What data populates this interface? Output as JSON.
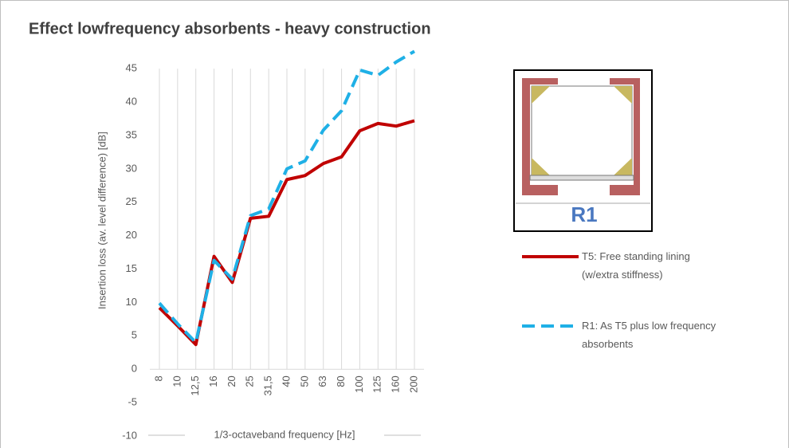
{
  "chart_data": {
    "type": "line",
    "title": "Effect lowfrequency absorbents  - heavy construction",
    "x_label": "1/3-octaveband frequency [Hz]",
    "y_label": "Insertion loss (av. level difference) [dB]",
    "categories": [
      "8",
      "10",
      "12,5",
      "16",
      "20",
      "25",
      "31,5",
      "40",
      "50",
      "63",
      "80",
      "100",
      "125",
      "160",
      "200"
    ],
    "series": [
      {
        "name": "T5: Free standing lining (w/extra stiffness)",
        "color": "#c00000",
        "dash": false,
        "values": [
          9.2,
          6.5,
          3.7,
          16.9,
          13,
          22.6,
          22.9,
          28.4,
          29,
          30.8,
          31.8,
          35.7,
          36.8,
          36.4,
          37.2
        ]
      },
      {
        "name": "R1: As T5 plus low frequency absorbents",
        "color": "#1fb0e6",
        "dash": true,
        "values": [
          9.9,
          6.8,
          4,
          16.3,
          13.5,
          23,
          24,
          30,
          31.2,
          35.8,
          38.7,
          44.8,
          44,
          46,
          47.6
        ]
      }
    ],
    "ylim": [
      -10,
      48
    ],
    "yticks": [
      -10,
      -5,
      0,
      5,
      10,
      15,
      20,
      25,
      30,
      35,
      40,
      45
    ],
    "grid": "vertical",
    "inset_label": "R1"
  }
}
